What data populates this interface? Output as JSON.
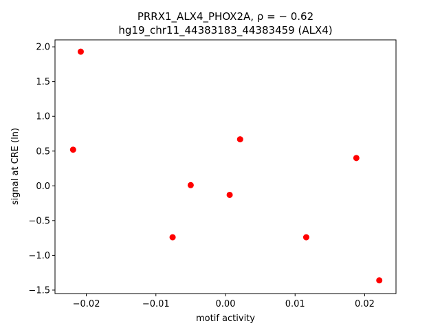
{
  "chart_data": {
    "type": "scatter",
    "title_line1": "PRRX1_ALX4_PHOX2A, ρ = − 0.62",
    "title_line2": "hg19_chr11_44383183_44383459 (ALX4)",
    "xlabel": "motif activity",
    "ylabel": "signal at CRE (ln)",
    "xlim": [
      -0.0245,
      0.0245
    ],
    "ylim": [
      -1.55,
      2.1
    ],
    "xticks": [
      -0.02,
      -0.01,
      0.0,
      0.01,
      0.02
    ],
    "xtick_labels": [
      "−0.02",
      "−0.01",
      "0.00",
      "0.01",
      "0.02"
    ],
    "yticks": [
      -1.5,
      -1.0,
      -0.5,
      0.0,
      0.5,
      1.0,
      1.5,
      2.0
    ],
    "ytick_labels": [
      "−1.5",
      "−1.0",
      "−0.5",
      "0.0",
      "0.5",
      "1.0",
      "1.5",
      "2.0"
    ],
    "grid": false,
    "marker_color": "#ff0000",
    "points": [
      {
        "x": -0.0208,
        "y": 1.93
      },
      {
        "x": -0.0219,
        "y": 0.52
      },
      {
        "x": 0.0021,
        "y": 0.67
      },
      {
        "x": -0.005,
        "y": 0.01
      },
      {
        "x": 0.0006,
        "y": -0.13
      },
      {
        "x": -0.0076,
        "y": -0.74
      },
      {
        "x": 0.0116,
        "y": -0.74
      },
      {
        "x": 0.0188,
        "y": 0.4
      },
      {
        "x": 0.0221,
        "y": -1.36
      }
    ]
  }
}
